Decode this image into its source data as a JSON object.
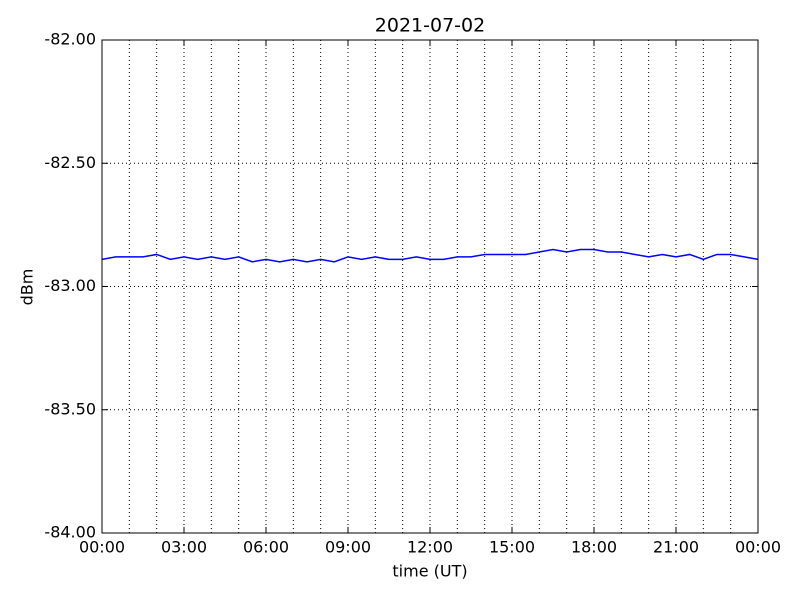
{
  "chart_data": {
    "type": "line",
    "title": "2021-07-02",
    "xlabel": "time (UT)",
    "ylabel": "dBm",
    "x": [
      0,
      0.5,
      1,
      1.5,
      2,
      2.5,
      3,
      3.5,
      4,
      4.5,
      5,
      5.5,
      6,
      6.5,
      7,
      7.5,
      8,
      8.5,
      9,
      9.5,
      10,
      10.5,
      11,
      11.5,
      12,
      12.5,
      13,
      13.5,
      14,
      14.5,
      15,
      15.5,
      16,
      16.5,
      17,
      17.5,
      18,
      18.5,
      19,
      19.5,
      20,
      20.5,
      21,
      21.5,
      22,
      22.5,
      23,
      23.5,
      24
    ],
    "series": [
      {
        "name": "dBm",
        "color": "#0000ff",
        "values": [
          -82.89,
          -82.88,
          -82.88,
          -82.88,
          -82.87,
          -82.89,
          -82.88,
          -82.89,
          -82.88,
          -82.89,
          -82.88,
          -82.9,
          -82.89,
          -82.9,
          -82.89,
          -82.9,
          -82.89,
          -82.9,
          -82.88,
          -82.89,
          -82.88,
          -82.89,
          -82.89,
          -82.88,
          -82.89,
          -82.89,
          -82.88,
          -82.88,
          -82.87,
          -82.87,
          -82.87,
          -82.87,
          -82.86,
          -82.85,
          -82.86,
          -82.85,
          -82.85,
          -82.86,
          -82.86,
          -82.87,
          -82.88,
          -82.87,
          -82.88,
          -82.87,
          -82.89,
          -82.87,
          -82.87,
          -82.88,
          -82.89
        ]
      }
    ],
    "xlim": [
      0,
      24
    ],
    "xticks": [
      {
        "value": 0,
        "label": "00:00"
      },
      {
        "value": 3,
        "label": "03:00"
      },
      {
        "value": 6,
        "label": "06:00"
      },
      {
        "value": 9,
        "label": "09:00"
      },
      {
        "value": 12,
        "label": "12:00"
      },
      {
        "value": 15,
        "label": "15:00"
      },
      {
        "value": 18,
        "label": "18:00"
      },
      {
        "value": 21,
        "label": "21:00"
      },
      {
        "value": 24,
        "label": "00:00"
      }
    ],
    "x_minor_ticks": [
      1,
      2,
      4,
      5,
      7,
      8,
      10,
      11,
      13,
      14,
      16,
      17,
      19,
      20,
      22,
      23
    ],
    "ylim": [
      -84,
      -82
    ],
    "yticks": [
      {
        "value": -84,
        "label": "-84.00"
      },
      {
        "value": -83.5,
        "label": "-83.50"
      },
      {
        "value": -83,
        "label": "-83.00"
      },
      {
        "value": -82.5,
        "label": "-82.50"
      },
      {
        "value": -82,
        "label": "-82.00"
      }
    ],
    "grid": true
  }
}
